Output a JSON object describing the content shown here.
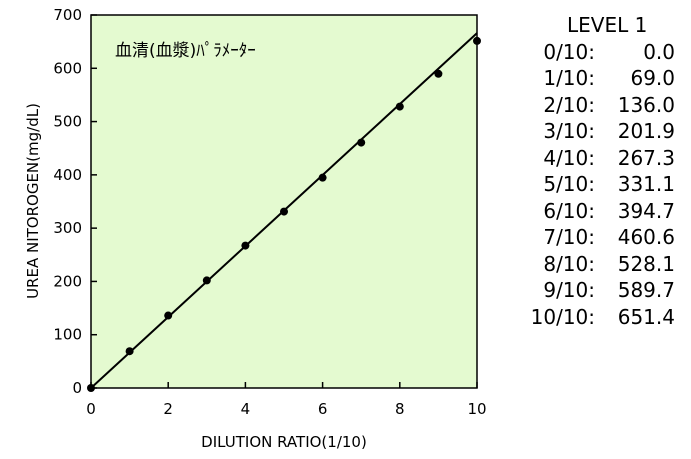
{
  "chart_data": {
    "type": "scatter",
    "annotation": "血清(血漿)ﾊﾟﾗﾒｰﾀｰ",
    "xlabel": "DILUTION RATIO(1/10)",
    "ylabel": "UREA NITOROGEN(mg/dL)",
    "xlim": [
      0,
      10
    ],
    "ylim": [
      0,
      700
    ],
    "xticks": [
      "0",
      "2",
      "4",
      "6",
      "8",
      "10"
    ],
    "yticks": [
      "0",
      "100",
      "200",
      "300",
      "400",
      "500",
      "600",
      "700"
    ],
    "grid": false,
    "series": [
      {
        "x": [
          0,
          1,
          2,
          3,
          4,
          5,
          6,
          7,
          8,
          9,
          10
        ],
        "y": [
          0.0,
          69.0,
          136.0,
          201.9,
          267.3,
          331.1,
          394.7,
          460.6,
          528.1,
          589.7,
          651.4
        ]
      }
    ],
    "fit_line": {
      "x": [
        0,
        10
      ],
      "y": [
        0,
        666
      ]
    },
    "colors": {
      "plot_background": "#e4fad0",
      "marker": "#000000",
      "line": "#000000"
    }
  },
  "side_table": {
    "title": "LEVEL 1",
    "rows": [
      {
        "ratio": "0/10:",
        "value": "0.0"
      },
      {
        "ratio": "1/10:",
        "value": "69.0"
      },
      {
        "ratio": "2/10:",
        "value": "136.0"
      },
      {
        "ratio": "3/10:",
        "value": "201.9"
      },
      {
        "ratio": "4/10:",
        "value": "267.3"
      },
      {
        "ratio": "5/10:",
        "value": "331.1"
      },
      {
        "ratio": "6/10:",
        "value": "394.7"
      },
      {
        "ratio": "7/10:",
        "value": "460.6"
      },
      {
        "ratio": "8/10:",
        "value": "528.1"
      },
      {
        "ratio": "9/10:",
        "value": "589.7"
      },
      {
        "ratio": "10/10:",
        "value": "651.4"
      }
    ]
  }
}
